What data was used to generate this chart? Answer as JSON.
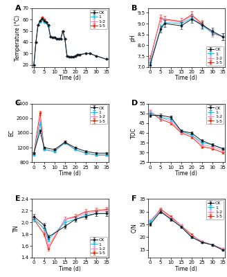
{
  "time_A": [
    0,
    1,
    2,
    3,
    4,
    5,
    6,
    7,
    8,
    9,
    10,
    11,
    12,
    13,
    14,
    15,
    16,
    17,
    18,
    19,
    20,
    21,
    22,
    25,
    27,
    30,
    35
  ],
  "temp_CK": [
    20,
    40,
    55,
    59,
    61,
    59,
    58,
    55,
    45,
    44,
    44,
    43,
    43,
    43,
    50,
    43,
    28,
    27,
    27,
    27,
    28,
    29,
    29,
    30,
    30,
    28,
    25
  ],
  "temp_1": [
    20,
    40,
    55,
    58,
    60,
    58,
    57,
    54,
    45,
    44,
    44,
    43,
    43,
    43,
    50,
    43,
    28,
    27,
    27,
    27,
    28,
    29,
    29,
    30,
    30,
    28,
    25
  ],
  "temp_12": [
    20,
    40,
    55,
    58,
    60,
    58,
    57,
    54,
    45,
    44,
    44,
    43,
    43,
    43,
    50,
    43,
    28,
    27,
    27,
    27,
    28,
    29,
    29,
    30,
    30,
    28,
    25
  ],
  "temp_15": [
    20,
    40,
    55,
    59,
    62,
    60,
    58,
    55,
    45,
    44,
    44,
    43,
    43,
    43,
    50,
    43,
    28,
    27,
    27,
    27,
    28,
    29,
    29,
    30,
    30,
    28,
    25
  ],
  "time_B": [
    0,
    5,
    7,
    15,
    20,
    25,
    30,
    35
  ],
  "ph_CK": [
    7.1,
    8.75,
    9.0,
    8.9,
    9.2,
    8.95,
    8.65,
    8.4
  ],
  "ph_1": [
    7.2,
    8.8,
    9.05,
    9.0,
    9.25,
    8.9,
    8.6,
    8.4
  ],
  "ph_12": [
    7.3,
    9.2,
    9.15,
    9.05,
    9.35,
    8.95,
    8.55,
    8.4
  ],
  "ph_15": [
    7.4,
    9.25,
    9.2,
    9.1,
    9.4,
    9.0,
    8.55,
    8.4
  ],
  "time_C": [
    0,
    3,
    5,
    10,
    15,
    20,
    25,
    30,
    35
  ],
  "ec_CK": [
    1050,
    1650,
    1200,
    1150,
    1350,
    1200,
    1100,
    1050,
    1050
  ],
  "ec_1": [
    1000,
    1850,
    1150,
    1100,
    1330,
    1150,
    1050,
    1000,
    1000
  ],
  "ec_12": [
    1050,
    1950,
    1150,
    1100,
    1330,
    1150,
    1050,
    1000,
    1000
  ],
  "ec_15": [
    1050,
    2150,
    1150,
    1100,
    1350,
    1150,
    1050,
    1000,
    1000
  ],
  "time_D": [
    0,
    5,
    10,
    15,
    20,
    25,
    30,
    35
  ],
  "toc_CK": [
    49,
    49,
    48,
    41,
    40,
    36,
    34,
    32
  ],
  "toc_1": [
    50,
    48,
    47,
    41,
    39,
    35,
    34,
    32
  ],
  "toc_12": [
    51,
    48,
    46,
    40.5,
    39,
    34,
    33,
    31
  ],
  "toc_15": [
    50.5,
    47,
    45,
    40,
    38,
    33,
    32,
    30
  ],
  "time_E": [
    0,
    5,
    7,
    15,
    20,
    25,
    30,
    35
  ],
  "tn_CK": [
    2.1,
    1.95,
    1.75,
    1.93,
    2.05,
    2.1,
    2.15,
    2.15
  ],
  "tn_1": [
    2.05,
    1.9,
    1.7,
    2.0,
    2.05,
    2.12,
    2.15,
    2.15
  ],
  "tn_12": [
    2.08,
    1.88,
    1.6,
    2.05,
    2.08,
    2.15,
    2.18,
    2.2
  ],
  "tn_15": [
    2.05,
    1.8,
    1.55,
    2.05,
    2.1,
    2.18,
    2.2,
    2.22
  ],
  "time_F": [
    0,
    5,
    10,
    15,
    20,
    25,
    30,
    35
  ],
  "cn_CK": [
    25,
    30,
    27,
    24,
    20,
    18,
    17,
    15
  ],
  "cn_1": [
    26,
    30,
    27,
    24,
    20,
    18,
    17,
    15
  ],
  "cn_12": [
    26.5,
    30.5,
    27.5,
    24.5,
    20.5,
    18.5,
    17,
    15.5
  ],
  "cn_15": [
    26,
    31,
    28,
    24.5,
    21,
    18,
    17,
    15.5
  ],
  "colors": {
    "CK": "#1a1a1a",
    "1": "#00cfff",
    "12": "#ff88bb",
    "15": "#ff2200"
  },
  "legend_labels": [
    "CK",
    "1",
    "1-2",
    "1-5"
  ],
  "panel_labels": [
    "A",
    "B",
    "C",
    "D",
    "E",
    "F"
  ],
  "ylabels": [
    "Temperature (°C)",
    "pH",
    "EC",
    "TOC",
    "TN",
    "C/N"
  ],
  "xlabel": "Time (d)"
}
